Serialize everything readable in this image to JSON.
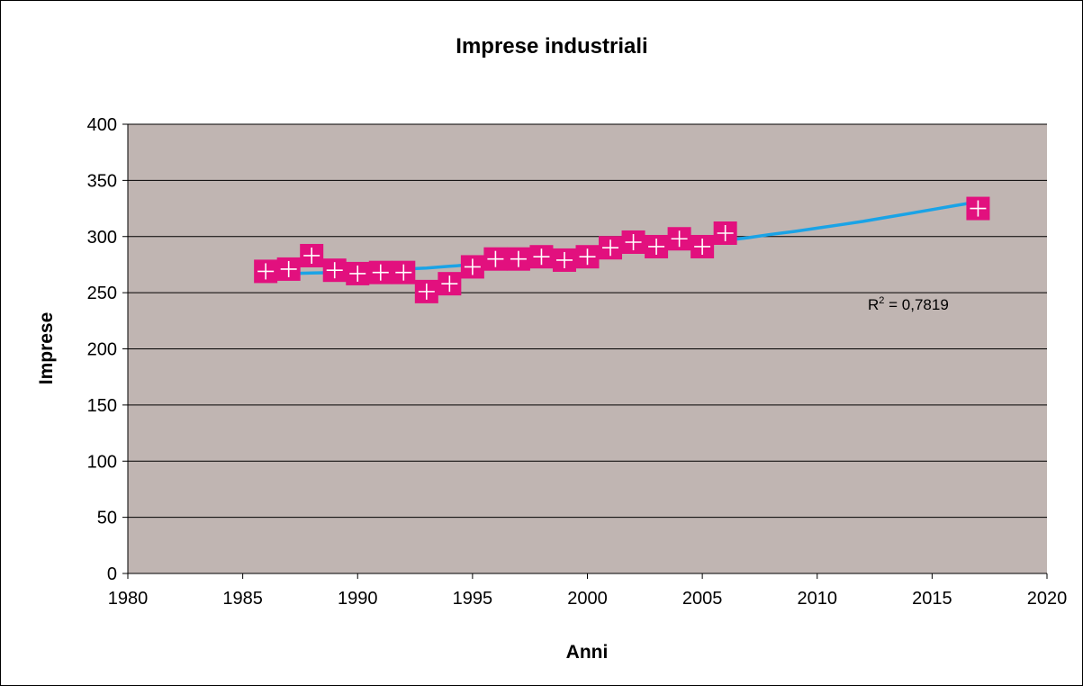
{
  "chart_data": {
    "type": "scatter",
    "title": "Imprese industriali",
    "xlabel": "Anni",
    "ylabel": "Imprese",
    "xlim": [
      1980,
      2020
    ],
    "ylim": [
      0,
      400
    ],
    "x_ticks": [
      1980,
      1985,
      1990,
      1995,
      2000,
      2005,
      2010,
      2015,
      2020
    ],
    "y_ticks": [
      0,
      50,
      100,
      150,
      200,
      250,
      300,
      350,
      400
    ],
    "grid": "horizontal",
    "legend": "none",
    "series": [
      {
        "marker": "square-plus",
        "x": [
          1986,
          1987,
          1988,
          1989,
          1990,
          1991,
          1992,
          1993,
          1994,
          1995,
          1996,
          1997,
          1998,
          1999,
          2000,
          2001,
          2002,
          2003,
          2004,
          2005,
          2006,
          2017
        ],
        "y": [
          269,
          271,
          283,
          270,
          267,
          268,
          268,
          251,
          258,
          273,
          280,
          280,
          282,
          279,
          282,
          290,
          295,
          291,
          298,
          291,
          303,
          325
        ]
      }
    ],
    "trendline": {
      "x": [
        1986,
        1987,
        1988,
        1989,
        1990,
        1991,
        1992,
        1993,
        1994,
        1995,
        1996,
        1997,
        1998,
        1999,
        2000,
        2001,
        2002,
        2003,
        2004,
        2005,
        2006,
        2007,
        2008,
        2009,
        2010,
        2011,
        2012,
        2013,
        2014,
        2015,
        2016,
        2017
      ],
      "y": [
        267,
        267,
        267.5,
        268,
        269,
        270,
        271,
        272,
        273.5,
        275,
        276.5,
        278,
        279.5,
        281,
        283,
        285,
        287,
        289,
        291.5,
        294,
        296.5,
        299,
        302,
        304.5,
        307.5,
        310.5,
        313.5,
        317,
        320.5,
        324,
        327.5,
        331
      ]
    },
    "annotation": {
      "base": "R",
      "sup": "2",
      "text": " = 0,7819"
    },
    "colors": {
      "plot_bg": "#c0b5b2",
      "marker_fill": "#e2107e",
      "marker_cross": "#ffffff",
      "trendline": "#1aa3e6",
      "grid": "#000000"
    }
  }
}
